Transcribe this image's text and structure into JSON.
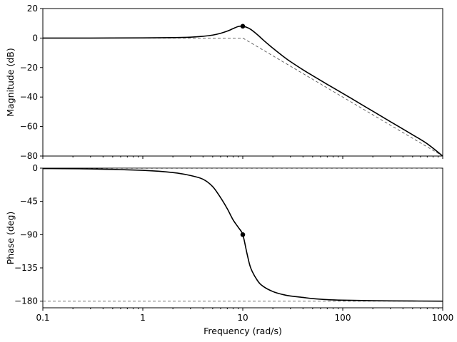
{
  "chart_data": [
    {
      "type": "line",
      "panel": "magnitude",
      "ylabel": "Magnitude (dB)",
      "xscale": "log",
      "xlim": [
        0.1,
        1000
      ],
      "ylim": [
        -80,
        20
      ],
      "yticks": [
        20,
        0,
        -20,
        -40,
        -60,
        -80
      ],
      "ytick_labels": [
        "20",
        "0",
        "−20",
        "−40",
        "−60",
        "−80"
      ],
      "series": [
        {
          "style": "solid",
          "x": [
            0.1,
            0.3,
            1,
            2,
            3,
            4,
            5,
            6,
            7,
            8,
            9,
            10,
            11,
            12,
            14,
            16,
            18,
            20,
            25,
            30,
            40,
            50,
            70,
            100,
            150,
            200,
            300,
            500,
            700,
            1000
          ],
          "y": [
            0,
            0,
            0.1,
            0.3,
            0.6,
            1.2,
            2,
            3.2,
            4.7,
            6.4,
            7.8,
            8,
            7.2,
            5.9,
            2.3,
            -1.3,
            -4.3,
            -6.9,
            -12.1,
            -16.0,
            -21.5,
            -25.5,
            -31.4,
            -37.5,
            -44.6,
            -49.6,
            -56.7,
            -65.6,
            -71.7,
            -80
          ]
        },
        {
          "style": "dashed",
          "x": [
            0.1,
            10,
            1000
          ],
          "y": [
            0,
            0,
            -80
          ]
        }
      ],
      "markers": [
        {
          "x": 10,
          "y": 8
        }
      ]
    },
    {
      "type": "line",
      "panel": "phase",
      "ylabel": "Phase (deg)",
      "xlabel": "Frequency (rad/s)",
      "xscale": "log",
      "xlim": [
        0.1,
        1000
      ],
      "ylim": [
        -189,
        0
      ],
      "xticks": [
        0.1,
        1,
        10,
        100,
        1000
      ],
      "xtick_labels": [
        "0.1",
        "1",
        "10",
        "100",
        "1000"
      ],
      "yticks": [
        0,
        -45,
        -90,
        -135,
        -180
      ],
      "ytick_labels": [
        "0",
        "−45",
        "−90",
        "−135",
        "−180"
      ],
      "series": [
        {
          "style": "solid",
          "x": [
            0.1,
            0.3,
            1,
            2,
            3,
            4,
            5,
            6,
            7,
            8,
            9,
            10,
            11,
            12,
            14,
            16,
            20,
            25,
            30,
            40,
            50,
            70,
            100,
            200,
            500,
            1000
          ],
          "y": [
            -0.5,
            -1,
            -3,
            -6,
            -10,
            -15,
            -25,
            -40,
            -55,
            -70,
            -80,
            -90,
            -115,
            -135,
            -152,
            -160,
            -167,
            -171,
            -173,
            -175,
            -176.5,
            -178,
            -178.7,
            -179.4,
            -179.8,
            -180
          ]
        },
        {
          "style": "dashed",
          "x": [
            0.1,
            1000
          ],
          "y": [
            -180,
            -180
          ]
        },
        {
          "style": "dashed",
          "x": [
            0.1,
            1000
          ],
          "y": [
            0,
            0
          ]
        }
      ],
      "markers": [
        {
          "x": 10,
          "y": -90
        }
      ]
    }
  ]
}
